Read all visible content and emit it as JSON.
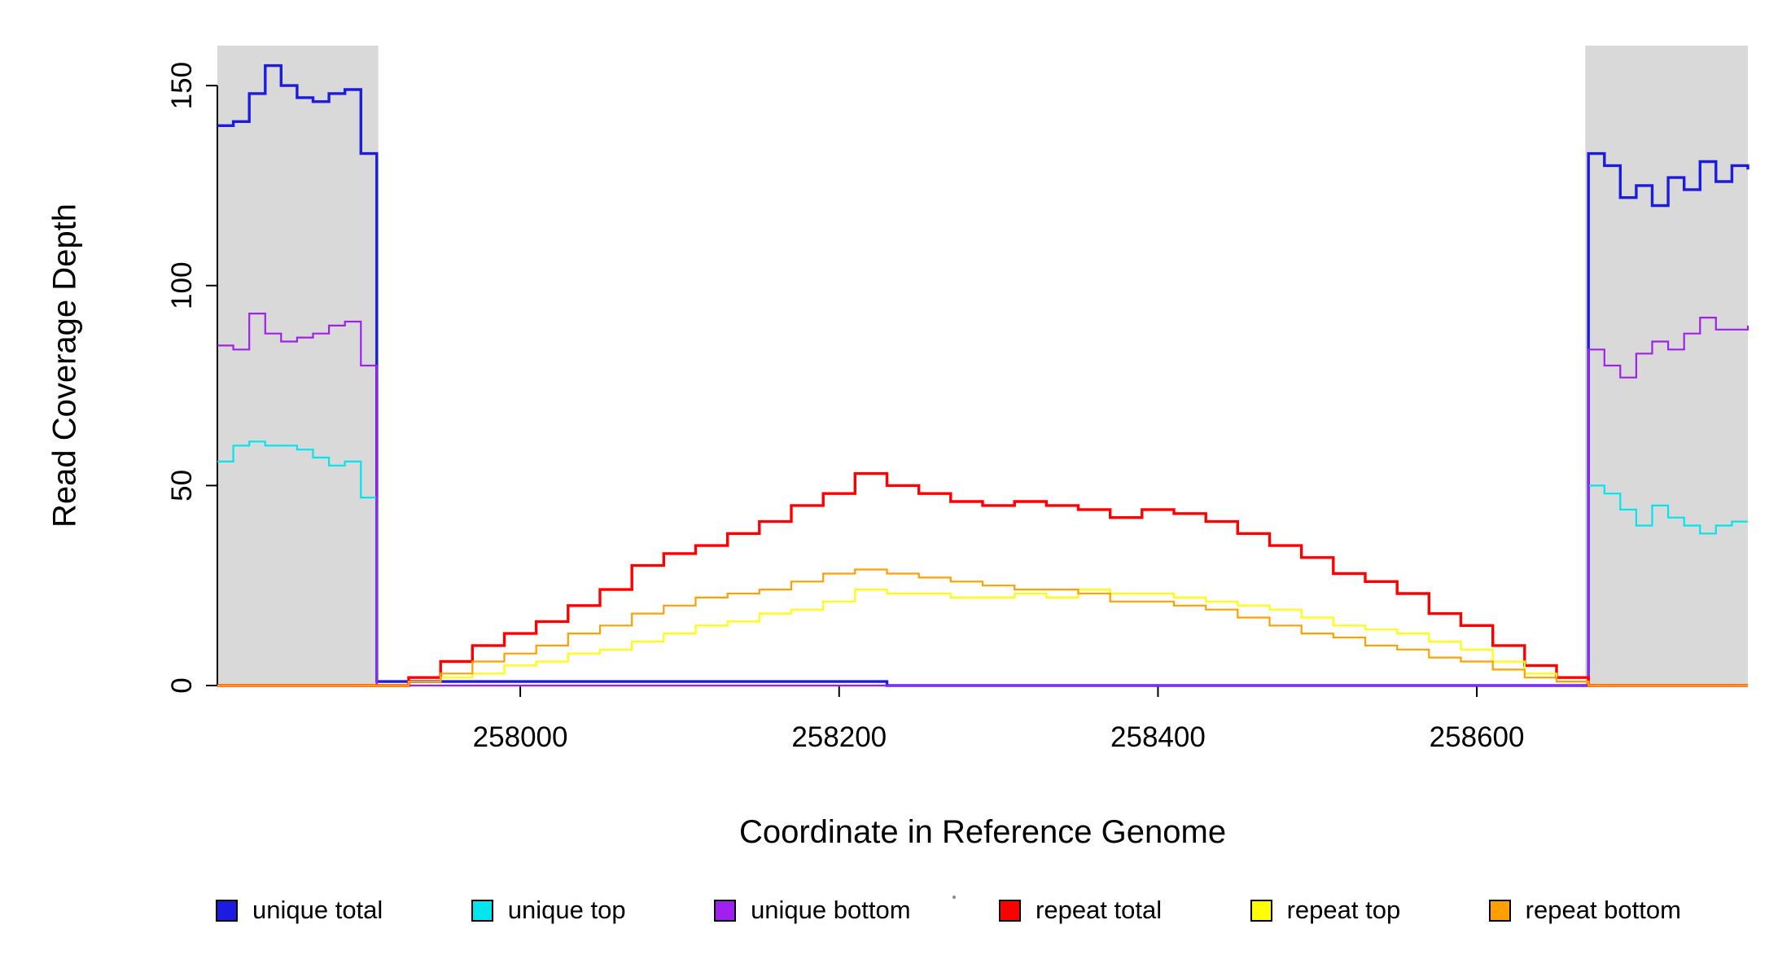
{
  "figure": {
    "x_axis_title": "Coordinate in Reference Genome",
    "y_axis_title": "Read Coverage Depth"
  },
  "legend": [
    {
      "label": "unique total",
      "color": "#1c1ce0"
    },
    {
      "label": "unique top",
      "color": "#00e5ee"
    },
    {
      "label": "unique bottom",
      "color": "#a020f0"
    },
    {
      "label": "repeat total",
      "color": "#ff0000"
    },
    {
      "label": "repeat top",
      "color": "#ffff00"
    },
    {
      "label": "repeat bottom",
      "color": "#ffa000"
    }
  ],
  "chart_data": {
    "type": "line",
    "style": "step",
    "title": "",
    "xlabel": "Coordinate in Reference Genome",
    "ylabel": "Read Coverage Depth",
    "xlim": [
      257810,
      258770
    ],
    "ylim": [
      0,
      160
    ],
    "x_ticks": [
      258000,
      258200,
      258400,
      258600
    ],
    "y_ticks": [
      0,
      50,
      100,
      150
    ],
    "grid": false,
    "legend_position": "bottom",
    "shade_color": "#d9d9d9",
    "shaded_regions": [
      [
        257810,
        257911
      ],
      [
        258668,
        258770
      ]
    ],
    "x": [
      257810,
      257820,
      257830,
      257840,
      257850,
      257860,
      257870,
      257880,
      257890,
      257900,
      257910,
      257930,
      257950,
      257970,
      257990,
      258010,
      258030,
      258050,
      258070,
      258090,
      258110,
      258130,
      258150,
      258170,
      258190,
      258210,
      258230,
      258250,
      258270,
      258290,
      258310,
      258330,
      258350,
      258370,
      258390,
      258410,
      258430,
      258450,
      258470,
      258490,
      258510,
      258530,
      258550,
      258570,
      258590,
      258610,
      258630,
      258650,
      258670,
      258680,
      258690,
      258700,
      258710,
      258720,
      258730,
      258740,
      258750,
      258760,
      258770
    ],
    "series": [
      {
        "name": "unique total",
        "color": "#1c1ce0",
        "width": 3.4,
        "values": [
          140,
          141,
          148,
          155,
          150,
          147,
          146,
          148,
          149,
          133,
          1,
          1,
          1,
          1,
          1,
          1,
          1,
          1,
          1,
          1,
          1,
          1,
          1,
          1,
          1,
          1,
          0,
          0,
          0,
          0,
          0,
          0,
          0,
          0,
          0,
          0,
          0,
          0,
          0,
          0,
          0,
          0,
          0,
          0,
          0,
          0,
          0,
          0,
          133,
          130,
          122,
          125,
          120,
          127,
          124,
          131,
          126,
          130,
          129
        ]
      },
      {
        "name": "unique top",
        "color": "#00e5ee",
        "width": 2.2,
        "values": [
          56,
          60,
          61,
          60,
          60,
          59,
          57,
          55,
          56,
          47,
          0,
          0,
          0,
          0,
          0,
          0,
          0,
          0,
          0,
          0,
          0,
          0,
          0,
          0,
          0,
          0,
          0,
          0,
          0,
          0,
          0,
          0,
          0,
          0,
          0,
          0,
          0,
          0,
          0,
          0,
          0,
          0,
          0,
          0,
          0,
          0,
          0,
          0,
          50,
          48,
          44,
          40,
          45,
          42,
          40,
          38,
          40,
          41,
          41
        ]
      },
      {
        "name": "unique bottom",
        "color": "#a020f0",
        "width": 2.2,
        "values": [
          85,
          84,
          93,
          88,
          86,
          87,
          88,
          90,
          91,
          80,
          0,
          0,
          0,
          0,
          0,
          0,
          0,
          0,
          0,
          0,
          0,
          0,
          0,
          0,
          0,
          0,
          0,
          0,
          0,
          0,
          0,
          0,
          0,
          0,
          0,
          0,
          0,
          0,
          0,
          0,
          0,
          0,
          0,
          0,
          0,
          0,
          0,
          0,
          84,
          80,
          77,
          83,
          86,
          84,
          88,
          92,
          89,
          89,
          90
        ]
      },
      {
        "name": "repeat total",
        "color": "#ff0000",
        "width": 3.4,
        "values": [
          0,
          0,
          0,
          0,
          0,
          0,
          0,
          0,
          0,
          0,
          0,
          2,
          6,
          10,
          13,
          16,
          20,
          24,
          30,
          33,
          35,
          38,
          41,
          45,
          48,
          53,
          50,
          48,
          46,
          45,
          46,
          45,
          44,
          42,
          44,
          43,
          41,
          38,
          35,
          32,
          28,
          26,
          23,
          18,
          15,
          10,
          5,
          2,
          0,
          0,
          0,
          0,
          0,
          0,
          0,
          0,
          0,
          0,
          0
        ]
      },
      {
        "name": "repeat top",
        "color": "#ffff00",
        "width": 2.2,
        "values": [
          0,
          0,
          0,
          0,
          0,
          0,
          0,
          0,
          0,
          0,
          0,
          1,
          2,
          3,
          5,
          6,
          8,
          9,
          11,
          13,
          15,
          16,
          18,
          19,
          21,
          24,
          23,
          23,
          22,
          22,
          23,
          22,
          24,
          23,
          23,
          22,
          21,
          20,
          19,
          17,
          15,
          14,
          13,
          11,
          9,
          6,
          3,
          1,
          0,
          0,
          0,
          0,
          0,
          0,
          0,
          0,
          0,
          0,
          0
        ]
      },
      {
        "name": "repeat bottom",
        "color": "#ffa000",
        "width": 2.2,
        "values": [
          0,
          0,
          0,
          0,
          0,
          0,
          0,
          0,
          0,
          0,
          0,
          1,
          3,
          6,
          8,
          10,
          13,
          15,
          18,
          20,
          22,
          23,
          24,
          26,
          28,
          29,
          28,
          27,
          26,
          25,
          24,
          24,
          23,
          21,
          21,
          20,
          19,
          17,
          15,
          13,
          12,
          10,
          9,
          7,
          6,
          4,
          2,
          1,
          0,
          0,
          0,
          0,
          0,
          0,
          0,
          0,
          0,
          0,
          0
        ]
      }
    ]
  }
}
